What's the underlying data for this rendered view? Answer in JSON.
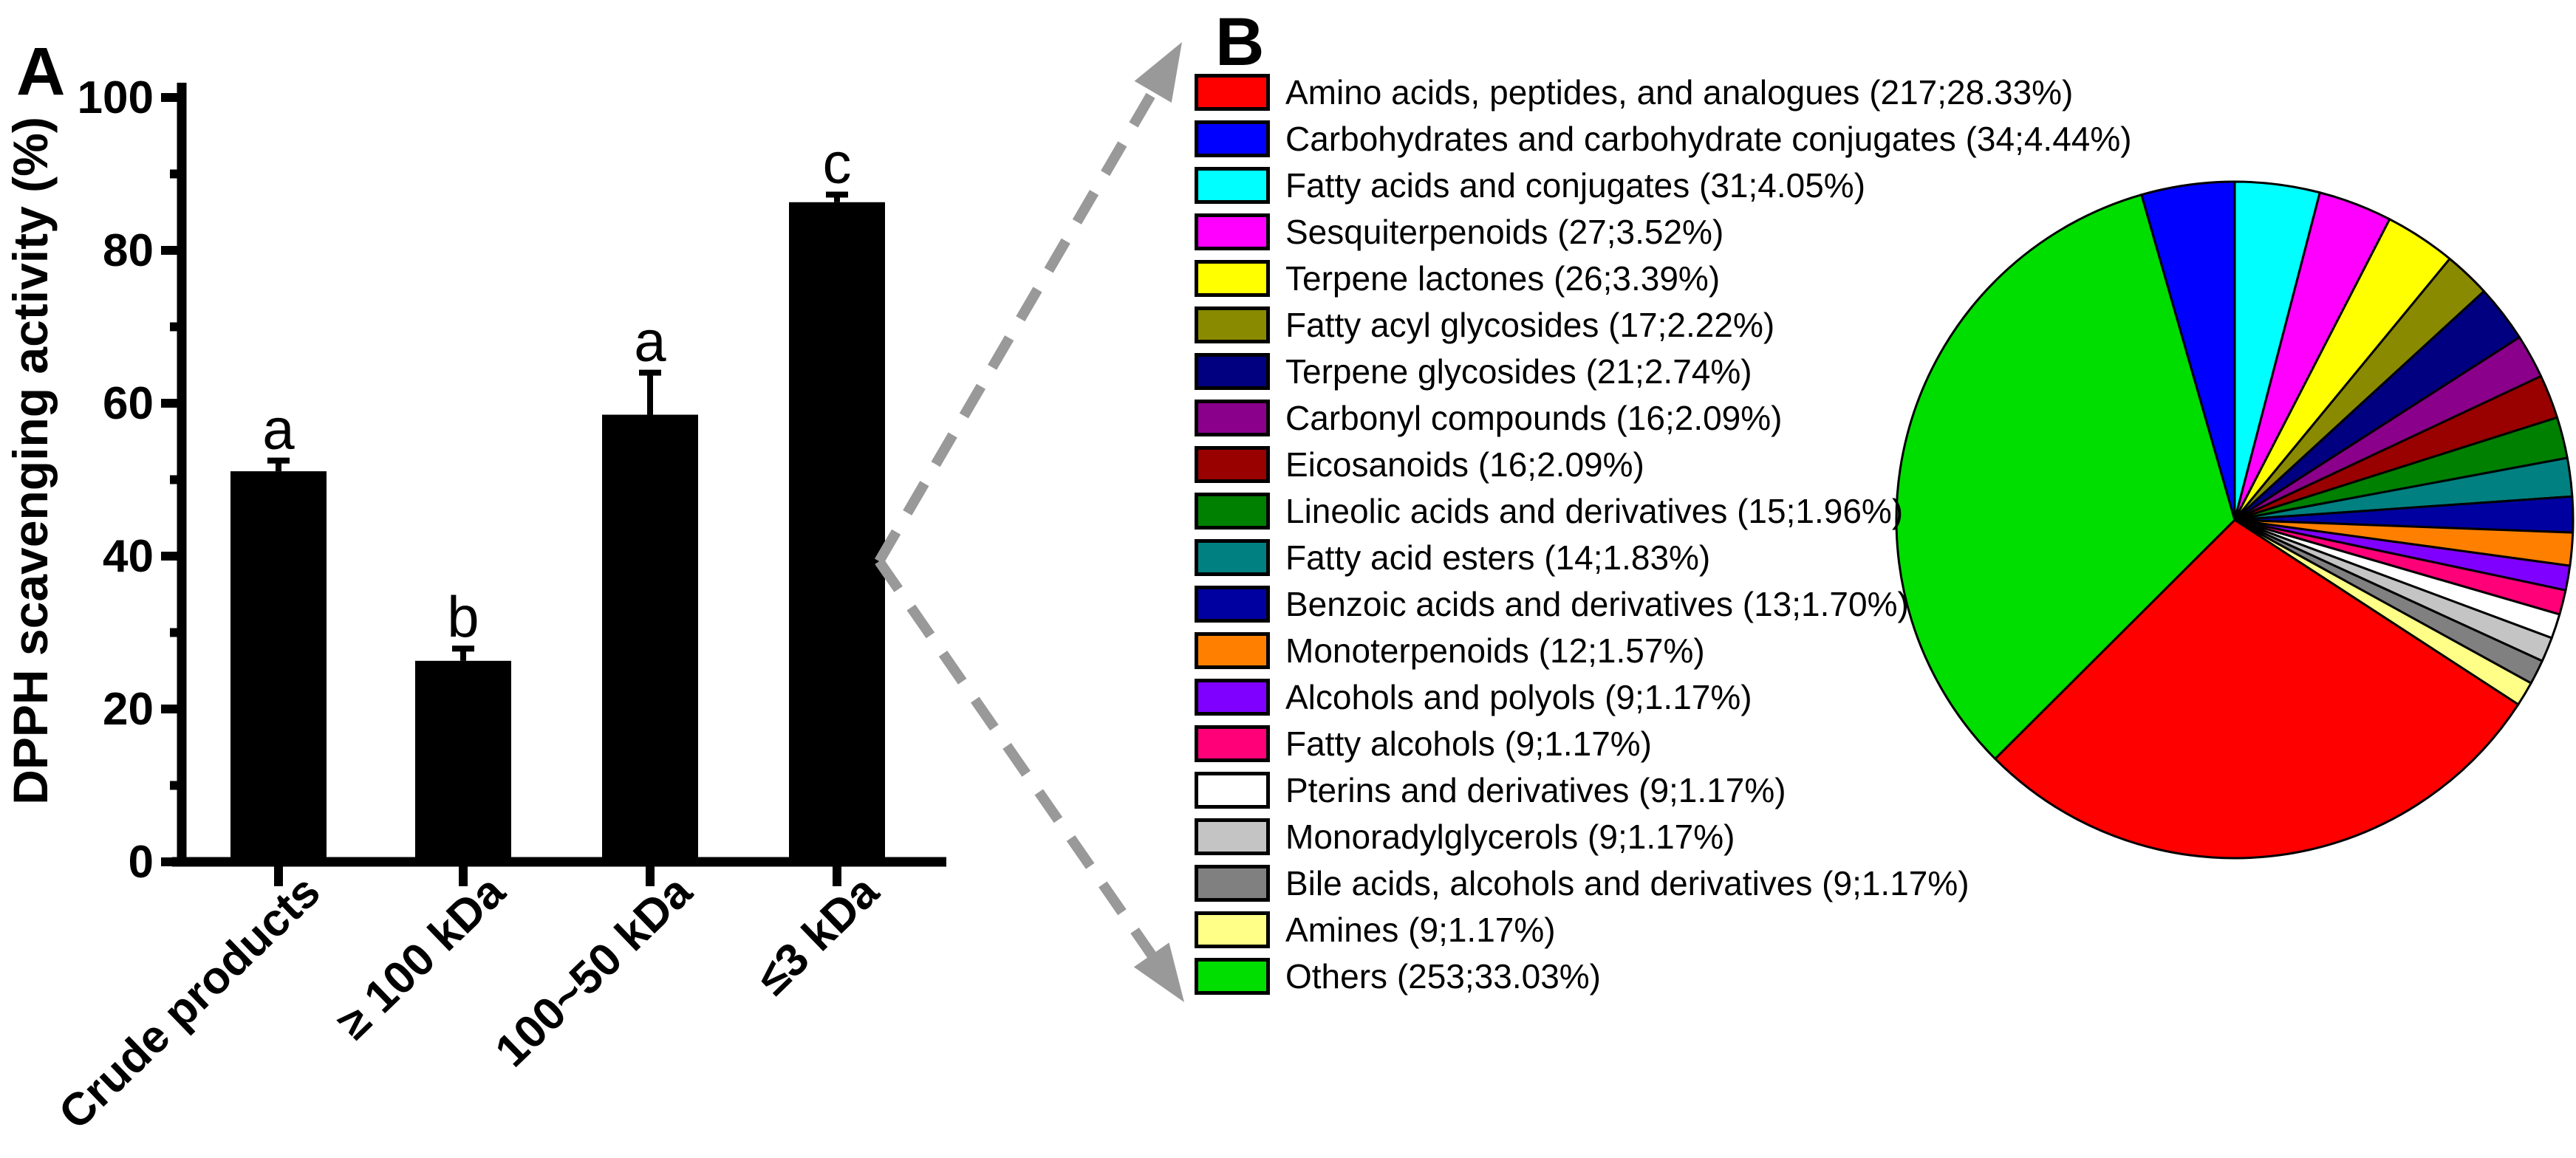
{
  "panels": {
    "a_label": "A",
    "b_label": "B"
  },
  "colors": {
    "arrow_gray": "#999999",
    "bar_fill": "#000000",
    "axis_black": "#000000"
  },
  "chart_data": [
    {
      "type": "bar",
      "panel": "A",
      "ylabel": "DPPH scavenging activity (%)",
      "ylim": [
        0,
        100
      ],
      "ytick_step": 20,
      "yminor_step": 10,
      "ytick_labels": [
        "0",
        "20",
        "40",
        "60",
        "80",
        "100"
      ],
      "categories": [
        "Crude products",
        "≥ 100 kDa",
        "100~50 kDa",
        "≤3 kDa"
      ],
      "values": [
        51.1,
        26.3,
        58.5,
        86.3
      ],
      "errors_plus": [
        1.4,
        1.6,
        5.5,
        1.0
      ],
      "sig_letters": [
        "a",
        "b",
        "a",
        "c"
      ],
      "bar_color": "#000000",
      "grid": false,
      "legend_position": "none"
    },
    {
      "type": "pie",
      "panel": "B",
      "start_angle_deg": 0,
      "direction": "clockwise",
      "legend_position": "left",
      "legend_format": "{name} ({count};{pct}%)",
      "slices": [
        {
          "name": "Amino acids, peptides, and analogues",
          "count": 217,
          "pct": "28.33",
          "color": "#FF0000"
        },
        {
          "name": "Carbohydrates and carbohydrate conjugates",
          "count": 34,
          "pct": "4.44",
          "color": "#0000FF"
        },
        {
          "name": "Fatty acids and conjugates",
          "count": 31,
          "pct": "4.05",
          "color": "#00FFFF"
        },
        {
          "name": "Sesquiterpenoids",
          "count": 27,
          "pct": "3.52",
          "color": "#FF00FF"
        },
        {
          "name": "Terpene lactones",
          "count": 26,
          "pct": "3.39",
          "color": "#FFFF00"
        },
        {
          "name": "Fatty acyl glycosides",
          "count": 17,
          "pct": "2.22",
          "color": "#8A8A00"
        },
        {
          "name": "Terpene glycosides",
          "count": 21,
          "pct": "2.74",
          "color": "#000080"
        },
        {
          "name": "Carbonyl compounds",
          "count": 16,
          "pct": "2.09",
          "color": "#8A008A"
        },
        {
          "name": "Eicosanoids",
          "count": 16,
          "pct": "2.09",
          "color": "#990000"
        },
        {
          "name": "Lineolic acids and derivatives",
          "count": 15,
          "pct": "1.96",
          "color": "#008000"
        },
        {
          "name": "Fatty acid esters",
          "count": 14,
          "pct": "1.83",
          "color": "#008080"
        },
        {
          "name": "Benzoic acids and derivatives",
          "count": 13,
          "pct": "1.70",
          "color": "#0000A0"
        },
        {
          "name": "Monoterpenoids",
          "count": 12,
          "pct": "1.57",
          "color": "#FF8000"
        },
        {
          "name": "Alcohols and polyols",
          "count": 9,
          "pct": "1.17",
          "color": "#7F00FF"
        },
        {
          "name": "Fatty alcohols",
          "count": 9,
          "pct": "1.17",
          "color": "#FF0078"
        },
        {
          "name": "Pterins and derivatives",
          "count": 9,
          "pct": "1.17",
          "color": "#FFFFFF"
        },
        {
          "name": "Monoradylglycerols",
          "count": 9,
          "pct": "1.17",
          "color": "#C4C4C4"
        },
        {
          "name": "Bile acids, alcohols and derivatives",
          "count": 9,
          "pct": "1.17",
          "color": "#808080"
        },
        {
          "name": "Amines",
          "count": 9,
          "pct": "1.17",
          "color": "#FFFF87"
        },
        {
          "name": "Others",
          "count": 253,
          "pct": "33.03",
          "color": "#00DE00"
        }
      ],
      "pie_draw_order": [
        2,
        3,
        4,
        5,
        6,
        7,
        8,
        9,
        10,
        11,
        12,
        13,
        14,
        15,
        16,
        17,
        18,
        0,
        19,
        1
      ]
    }
  ]
}
